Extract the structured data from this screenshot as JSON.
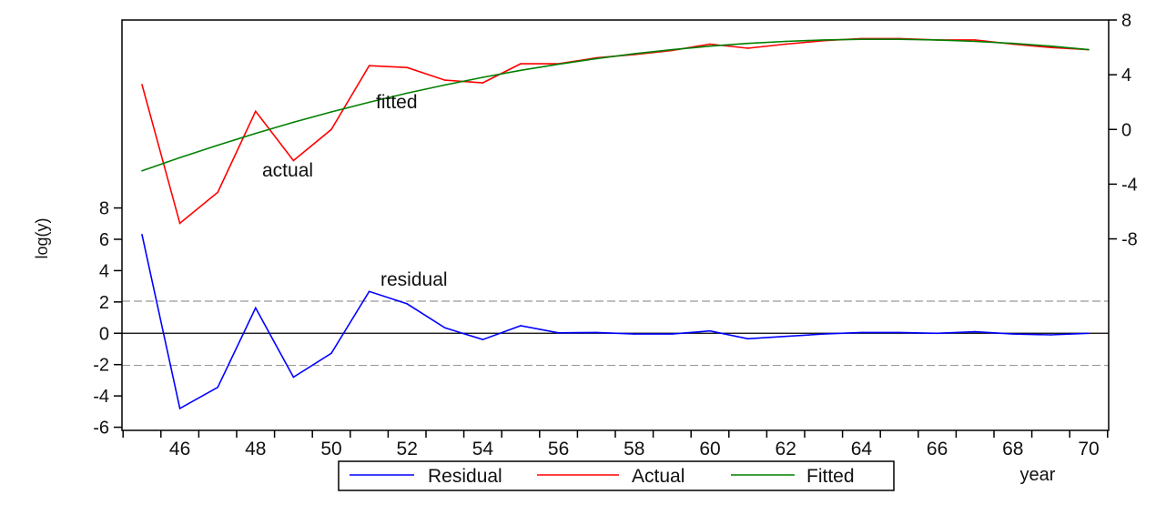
{
  "chart_data": {
    "type": "line",
    "title": "",
    "xlabel": "year",
    "ylabel": "log(y)",
    "x": [
      1945,
      1946,
      1947,
      1948,
      1949,
      1950,
      1951,
      1952,
      1953,
      1954,
      1955,
      1956,
      1957,
      1958,
      1959,
      1960,
      1961,
      1962,
      1963,
      1964,
      1965,
      1966,
      1967,
      1968,
      1969,
      1970
    ],
    "x_tick_labels": [
      "46",
      "48",
      "50",
      "52",
      "54",
      "56",
      "58",
      "60",
      "62",
      "64",
      "66",
      "68",
      "70"
    ],
    "x_tick_years": [
      1946,
      1948,
      1950,
      1952,
      1954,
      1956,
      1958,
      1960,
      1962,
      1964,
      1966,
      1968,
      1970
    ],
    "left_axis": {
      "range": [
        -6.2,
        20
      ],
      "ticks": [
        -6,
        -4,
        -2,
        0,
        2,
        4,
        6,
        8
      ],
      "tick_labels": [
        "-6",
        "-4",
        "-2",
        "0",
        "2",
        "4",
        "6",
        "8"
      ],
      "band": [
        -2.05,
        2.05
      ]
    },
    "right_axis": {
      "range": [
        -22,
        8
      ],
      "ticks": [
        -8,
        -4,
        0,
        4,
        8
      ],
      "tick_labels": [
        "-8",
        "-4",
        "0",
        "4",
        "8"
      ]
    },
    "series": [
      {
        "name": "Residual",
        "axis": "left",
        "color": "#0000ff",
        "values": [
          6.3,
          -4.8,
          -3.45,
          1.62,
          -2.8,
          -1.28,
          2.67,
          1.88,
          0.35,
          -0.4,
          0.48,
          0.03,
          0.05,
          -0.05,
          -0.05,
          0.15,
          -0.35,
          -0.2,
          -0.05,
          0.05,
          0.05,
          0.0,
          0.1,
          -0.05,
          -0.1,
          0.0
        ]
      },
      {
        "name": "Actual",
        "axis": "right",
        "color": "#ff0000",
        "values": [
          3.28,
          -6.86,
          -4.6,
          1.33,
          -2.28,
          0.0,
          4.66,
          4.53,
          3.6,
          3.41,
          4.8,
          4.8,
          5.23,
          5.48,
          5.78,
          6.24,
          5.94,
          6.24,
          6.49,
          6.64,
          6.64,
          6.54,
          6.54,
          6.24,
          5.99,
          5.83
        ]
      },
      {
        "name": "Fitted",
        "axis": "right",
        "color": "#008000",
        "values": [
          -3.02,
          -2.06,
          -1.15,
          -0.29,
          0.52,
          1.28,
          1.99,
          2.65,
          3.25,
          3.81,
          4.32,
          4.77,
          5.18,
          5.53,
          5.83,
          6.09,
          6.29,
          6.44,
          6.54,
          6.59,
          6.59,
          6.54,
          6.44,
          6.29,
          6.09,
          5.83
        ]
      }
    ],
    "annotations": {
      "fitted": "fitted",
      "actual": "actual",
      "residual": "residual"
    },
    "legend": {
      "placement": "bottom-center",
      "entries": [
        "Residual",
        "Actual",
        "Fitted"
      ]
    },
    "grid": false
  }
}
